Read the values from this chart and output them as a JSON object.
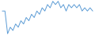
{
  "values": [
    8,
    8,
    1,
    3,
    2,
    4,
    3,
    5,
    4,
    6,
    5,
    7,
    6,
    8,
    7,
    9,
    8,
    10,
    9,
    11,
    10,
    11,
    9,
    10,
    8,
    10,
    9,
    10,
    9,
    10,
    8,
    9,
    8,
    9,
    8
  ],
  "line_color": "#5b9bd5",
  "bg_color": "#ffffff",
  "linewidth": 0.7
}
